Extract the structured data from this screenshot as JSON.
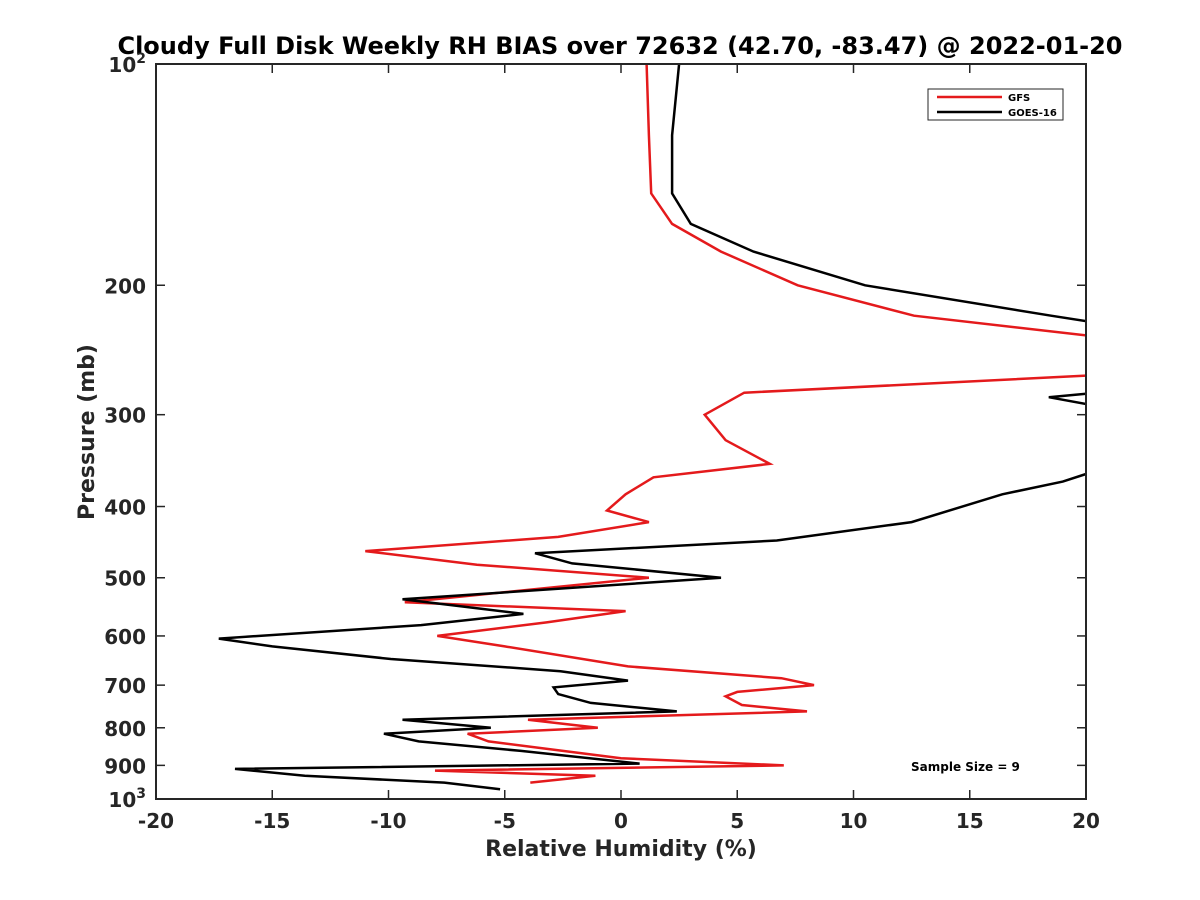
{
  "chart_data": {
    "type": "line",
    "title": "Cloudy Full Disk Weekly RH BIAS over 72632 (42.70, -83.47) @ 2022-01-20",
    "xlabel": "Relative Humidity (%)",
    "ylabel": "Pressure (mb)",
    "xlim": [
      -20,
      20
    ],
    "ylim": [
      100,
      1000
    ],
    "y_scale": "log",
    "y_reversed": true,
    "x_ticks": [
      -20,
      -15,
      -10,
      -5,
      0,
      5,
      10,
      15,
      20
    ],
    "x_tick_labels": [
      "-20",
      "-15",
      "-10",
      "-5",
      "0",
      "5",
      "10",
      "15",
      "20"
    ],
    "y_ticks": [
      100,
      200,
      300,
      400,
      500,
      600,
      700,
      800,
      900,
      1000
    ],
    "y_tick_labels": [
      {
        "base": "10",
        "exp": "2"
      },
      {
        "text": "200"
      },
      {
        "text": "300"
      },
      {
        "text": "400"
      },
      {
        "text": "500"
      },
      {
        "text": "600"
      },
      {
        "text": "700"
      },
      {
        "text": "800"
      },
      {
        "text": "900"
      },
      {
        "base": "10",
        "exp": "3"
      }
    ],
    "grid": false,
    "legend_position": "top-right",
    "annotation": "Sample Size = 9",
    "series": [
      {
        "name": "GFS",
        "color": "#e41a1c",
        "points": [
          [
            1.1,
            100
          ],
          [
            1.2,
            125
          ],
          [
            1.3,
            150
          ],
          [
            2.2,
            165
          ],
          [
            4.3,
            180
          ],
          [
            7.6,
            200
          ],
          [
            12.6,
            220
          ],
          [
            20.5,
            235
          ],
          [
            20.5,
            265
          ],
          [
            5.3,
            280
          ],
          [
            3.6,
            300
          ],
          [
            4.5,
            325
          ],
          [
            6.4,
            350
          ],
          [
            1.4,
            365
          ],
          [
            0.2,
            385
          ],
          [
            -0.6,
            405
          ],
          [
            1.2,
            420
          ],
          [
            -2.7,
            440
          ],
          [
            -11.0,
            460
          ],
          [
            -6.2,
            480
          ],
          [
            1.2,
            500
          ],
          [
            -9.3,
            540
          ],
          [
            0.2,
            555
          ],
          [
            -3.2,
            575
          ],
          [
            -7.9,
            600
          ],
          [
            -5.0,
            620
          ],
          [
            0.3,
            660
          ],
          [
            6.9,
            685
          ],
          [
            8.3,
            700
          ],
          [
            5.0,
            715
          ],
          [
            4.5,
            725
          ],
          [
            5.2,
            745
          ],
          [
            8.0,
            760
          ],
          [
            -4.0,
            780
          ],
          [
            -1.0,
            800
          ],
          [
            -6.6,
            815
          ],
          [
            -5.7,
            835
          ],
          [
            -2.5,
            860
          ],
          [
            0.0,
            880
          ],
          [
            7.0,
            900
          ],
          [
            -8.0,
            915
          ],
          [
            -1.1,
            930
          ],
          [
            -3.9,
            950
          ]
        ]
      },
      {
        "name": "GOES-16",
        "color": "#000000",
        "points": [
          [
            2.5,
            100
          ],
          [
            2.2,
            125
          ],
          [
            2.2,
            150
          ],
          [
            3.0,
            165
          ],
          [
            5.7,
            180
          ],
          [
            10.5,
            200
          ],
          [
            18.5,
            220
          ],
          [
            20.5,
            225
          ],
          [
            20.5,
            280
          ],
          [
            18.4,
            284
          ],
          [
            20.5,
            292
          ],
          [
            20.5,
            357
          ],
          [
            19.0,
            370
          ],
          [
            16.4,
            385
          ],
          [
            12.5,
            420
          ],
          [
            6.7,
            445
          ],
          [
            -3.7,
            463
          ],
          [
            -2.1,
            478
          ],
          [
            4.3,
            500
          ],
          [
            -9.4,
            535
          ],
          [
            -4.2,
            560
          ],
          [
            -8.6,
            580
          ],
          [
            -17.3,
            605
          ],
          [
            -15.0,
            620
          ],
          [
            -9.9,
            645
          ],
          [
            -2.6,
            670
          ],
          [
            0.3,
            690
          ],
          [
            -2.9,
            705
          ],
          [
            -2.7,
            720
          ],
          [
            -1.3,
            740
          ],
          [
            2.4,
            760
          ],
          [
            -9.4,
            780
          ],
          [
            -5.6,
            800
          ],
          [
            -10.2,
            815
          ],
          [
            -8.7,
            835
          ],
          [
            -4.3,
            860
          ],
          [
            0.8,
            895
          ],
          [
            -16.6,
            910
          ],
          [
            -13.6,
            930
          ],
          [
            -7.6,
            950
          ],
          [
            -5.2,
            970
          ]
        ]
      }
    ]
  }
}
